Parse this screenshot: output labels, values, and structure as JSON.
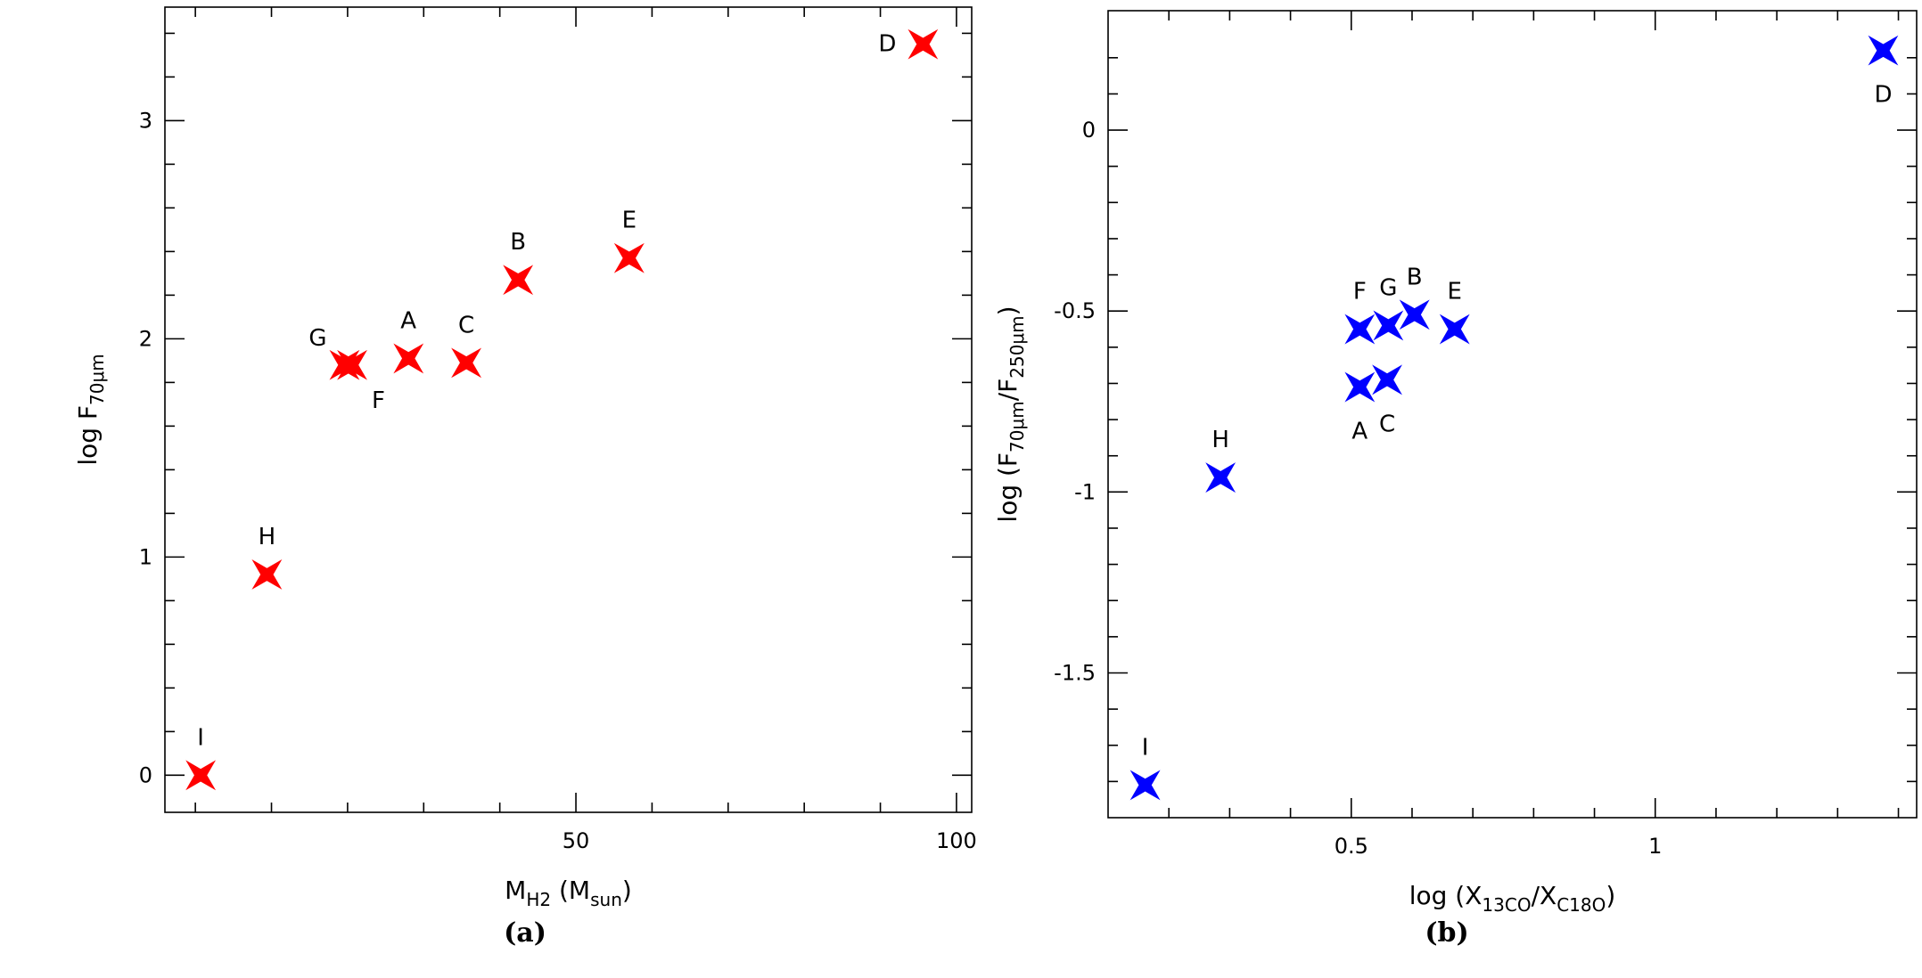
{
  "chart_data": [
    {
      "type": "scatter",
      "panel_label": "(a)",
      "xlabel": "M",
      "xlabel_sub": "H2",
      "xlabel_suffix": "(M",
      "xlabel_suffix_sub": "sun",
      "xlabel_close": ")",
      "ylabel": "log F",
      "ylabel_sub": "70μm",
      "xlim": [
        -4,
        102
      ],
      "ylim": [
        -0.17,
        3.52
      ],
      "xticks": [
        {
          "value": 50,
          "label": "50"
        },
        {
          "value": 100,
          "label": "100"
        }
      ],
      "xminor": [
        0,
        10,
        20,
        30,
        40,
        60,
        70,
        80,
        90
      ],
      "yticks": [
        {
          "value": 0,
          "label": "0"
        },
        {
          "value": 1,
          "label": "1"
        },
        {
          "value": 2,
          "label": "2"
        },
        {
          "value": 3,
          "label": "3"
        }
      ],
      "yminor": [
        0.2,
        0.4,
        0.6,
        0.8,
        1.2,
        1.4,
        1.6,
        1.8,
        2.2,
        2.4,
        2.6,
        2.8,
        3.2,
        3.4
      ],
      "marker_color": "#ff0000",
      "points": [
        {
          "label": "I",
          "x": 0.7,
          "y": 0.0,
          "label_pos": "above"
        },
        {
          "label": "H",
          "x": 9.4,
          "y": 0.92,
          "label_pos": "above"
        },
        {
          "label": "G",
          "x": 19.6,
          "y": 1.88,
          "label_pos": "above-left"
        },
        {
          "label": "F",
          "x": 20.6,
          "y": 1.88,
          "label_pos": "below-right"
        },
        {
          "label": "A",
          "x": 28.0,
          "y": 1.91,
          "label_pos": "above"
        },
        {
          "label": "C",
          "x": 35.6,
          "y": 1.89,
          "label_pos": "above"
        },
        {
          "label": "B",
          "x": 42.4,
          "y": 2.27,
          "label_pos": "above"
        },
        {
          "label": "E",
          "x": 57.0,
          "y": 2.37,
          "label_pos": "above"
        },
        {
          "label": "D",
          "x": 95.6,
          "y": 3.35,
          "label_pos": "left"
        }
      ]
    },
    {
      "type": "scatter",
      "panel_label": "(b)",
      "xlabel": "log (X",
      "xlabel_sub": "13CO",
      "xlabel_mid": "/X",
      "xlabel_sub2": "C18O",
      "xlabel_close": ")",
      "ylabel": "log (F",
      "ylabel_sub": "70μm",
      "ylabel_mid": "/F",
      "ylabel_sub2": "250μm",
      "ylabel_close": ")",
      "xlim": [
        0.1,
        1.43
      ],
      "ylim": [
        -1.9,
        0.33
      ],
      "xticks": [
        {
          "value": 0.5,
          "label": "0.5"
        },
        {
          "value": 1,
          "label": "1"
        }
      ],
      "xminor": [
        0.2,
        0.3,
        0.4,
        0.6,
        0.7,
        0.8,
        0.9,
        1.1,
        1.2,
        1.3,
        1.4
      ],
      "yticks": [
        {
          "value": 0,
          "label": "0"
        },
        {
          "value": -0.5,
          "label": "-0.5"
        },
        {
          "value": -1,
          "label": "-1"
        },
        {
          "value": -1.5,
          "label": "-1.5"
        }
      ],
      "yminor": [
        0.2,
        0.1,
        -0.1,
        -0.2,
        -0.3,
        -0.4,
        -0.6,
        -0.7,
        -0.8,
        -0.9,
        -1.1,
        -1.2,
        -1.3,
        -1.4,
        -1.6,
        -1.7,
        -1.8
      ],
      "marker_color": "#0000ff",
      "points": [
        {
          "label": "I",
          "x": 0.161,
          "y": -1.81,
          "label_pos": "above"
        },
        {
          "label": "H",
          "x": 0.285,
          "y": -0.96,
          "label_pos": "above"
        },
        {
          "label": "F",
          "x": 0.514,
          "y": -0.55,
          "label_pos": "above"
        },
        {
          "label": "G",
          "x": 0.561,
          "y": -0.54,
          "label_pos": "above"
        },
        {
          "label": "B",
          "x": 0.604,
          "y": -0.51,
          "label_pos": "above"
        },
        {
          "label": "E",
          "x": 0.67,
          "y": -0.55,
          "label_pos": "above"
        },
        {
          "label": "A",
          "x": 0.514,
          "y": -0.71,
          "label_pos": "below"
        },
        {
          "label": "C",
          "x": 0.559,
          "y": -0.69,
          "label_pos": "below"
        },
        {
          "label": "D",
          "x": 1.375,
          "y": 0.22,
          "label_pos": "below"
        }
      ]
    }
  ]
}
